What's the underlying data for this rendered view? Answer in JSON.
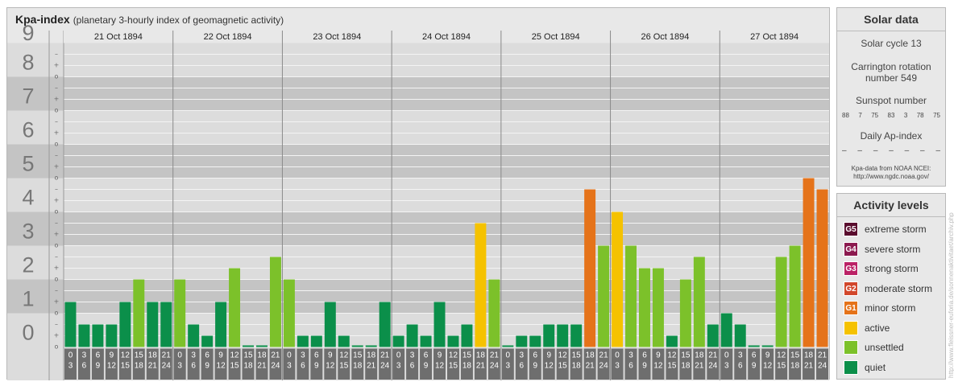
{
  "header": {
    "title": "Kpa-index",
    "subtitle": "(planetary 3-hourly index of geomagnetic activity)"
  },
  "chart_data": {
    "type": "bar",
    "ylim": [
      0,
      9
    ],
    "y_ticks": [
      "0",
      "1",
      "2",
      "3",
      "4",
      "5",
      "6",
      "7",
      "8",
      "9"
    ],
    "minor_labels": [
      "o",
      "+",
      "–"
    ],
    "days": [
      "21 Oct 1894",
      "22 Oct 1894",
      "23 Oct 1894",
      "24 Oct 1894",
      "25 Oct 1894",
      "26 Oct 1894",
      "27 Oct 1894"
    ],
    "interval_start": [
      "0",
      "3",
      "6",
      "9",
      "12",
      "15",
      "18",
      "21"
    ],
    "interval_end": [
      "3",
      "6",
      "9",
      "12",
      "15",
      "18",
      "21",
      "24"
    ],
    "values": [
      1.333,
      0.667,
      0.667,
      0.667,
      1.333,
      2.0,
      1.333,
      1.333,
      2.0,
      0.667,
      0.333,
      1.333,
      2.333,
      0.0,
      0.0,
      2.667,
      2.0,
      0.333,
      0.333,
      1.333,
      0.333,
      0.0,
      0.0,
      1.333,
      0.333,
      0.667,
      0.333,
      1.333,
      0.333,
      0.667,
      3.667,
      2.0,
      0.0,
      0.333,
      0.333,
      0.667,
      0.667,
      0.667,
      4.667,
      3.0,
      4.0,
      3.0,
      2.333,
      2.333,
      0.333,
      2.0,
      2.667,
      0.667,
      1.0,
      0.667,
      0.0,
      0.0,
      2.667,
      3.0,
      5.0,
      4.667
    ],
    "colors": {
      "quiet": "#0b8f4a",
      "unsettled": "#7cc12a",
      "active": "#f5c200",
      "G1": "#e5731a",
      "G2": "#d2472b",
      "G3": "#bb2266",
      "G4": "#8c1a4f",
      "G5": "#5a0d2e"
    }
  },
  "solar": {
    "title": "Solar data",
    "cycle": "Solar cycle 13",
    "carrington_line1": "Carrington rotation",
    "carrington_line2": "number 549",
    "sunspot_title": "Sunspot number",
    "sunspots": [
      "88",
      "7",
      "75",
      "83",
      "3",
      "78",
      "75"
    ],
    "ap_title": "Daily Ap-index",
    "ap_values": [
      "–",
      "–",
      "–",
      "–",
      "–",
      "–",
      "–"
    ],
    "credit_line1": "Kpa-data from NOAA NCEI:",
    "credit_line2": "http://www.ngdc.noaa.gov/"
  },
  "levels": {
    "title": "Activity levels",
    "items": [
      {
        "code": "G5",
        "label": "extreme storm",
        "color": "#5a0d2e"
      },
      {
        "code": "G4",
        "label": "severe storm",
        "color": "#8c1a4f"
      },
      {
        "code": "G3",
        "label": "strong storm",
        "color": "#bb2266"
      },
      {
        "code": "G2",
        "label": "moderate storm",
        "color": "#d2472b"
      },
      {
        "code": "G1",
        "label": "minor storm",
        "color": "#e5731a"
      },
      {
        "code": "",
        "label": "active",
        "color": "#f5c200"
      },
      {
        "code": "",
        "label": "unsettled",
        "color": "#7cc12a"
      },
      {
        "code": "",
        "label": "quiet",
        "color": "#0b8f4a"
      }
    ]
  },
  "watermark": "http://www.fleissner-euforia.de/sonnenaktivitaet/archiv.php"
}
